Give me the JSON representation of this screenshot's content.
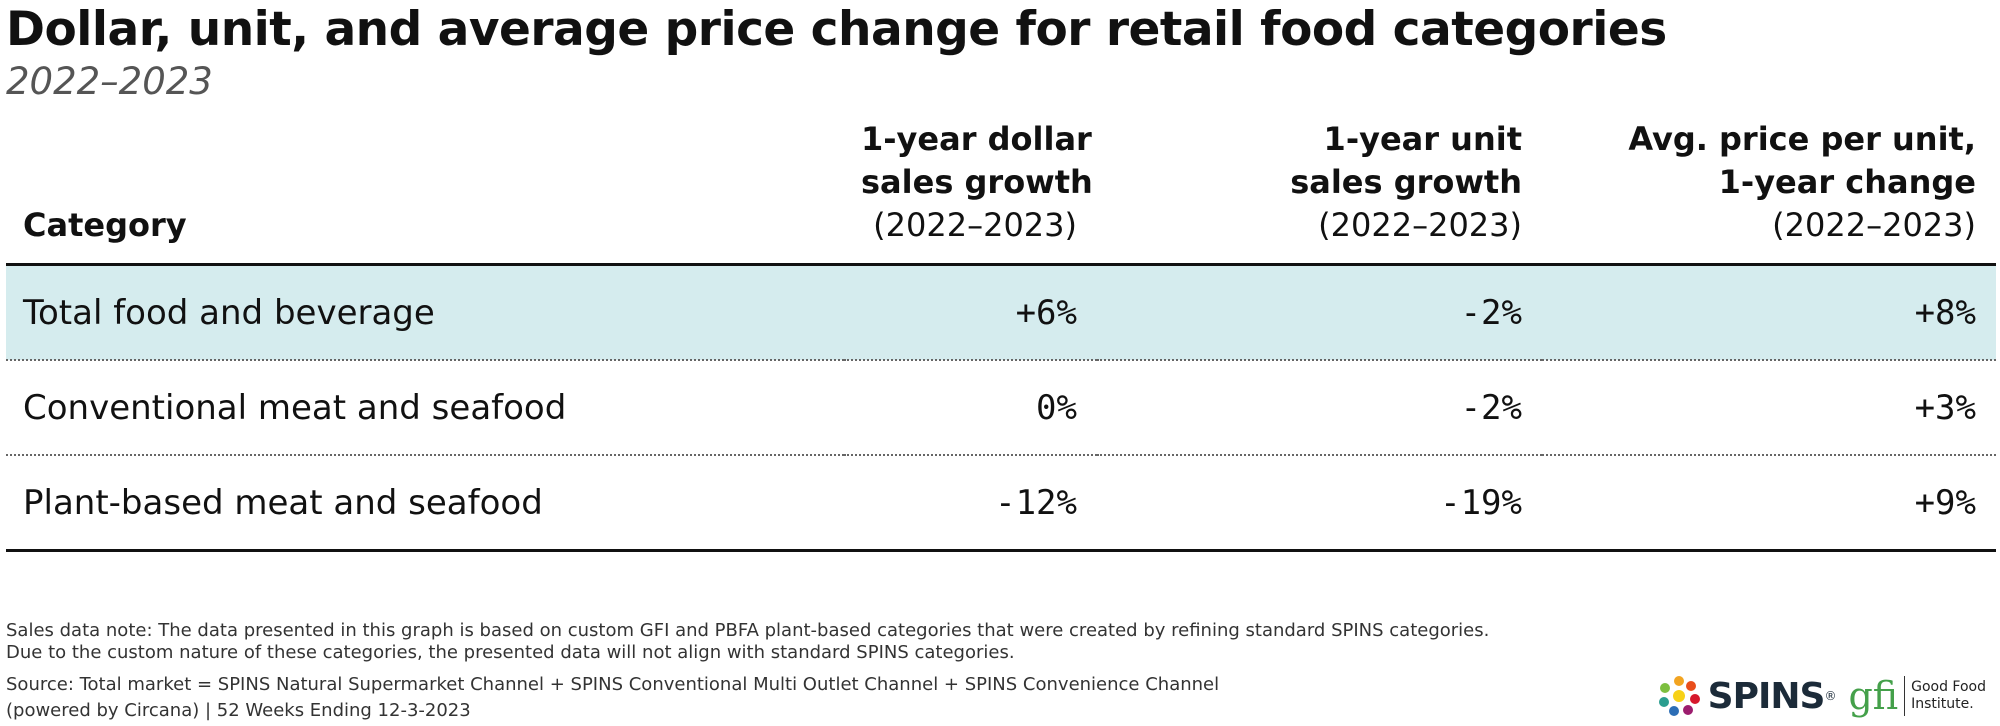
{
  "title": "Dollar, unit, and average price change for retail food categories",
  "subtitle": "2022–2023",
  "chart_data": {
    "type": "table",
    "title": "Dollar, unit, and average price change for retail food categories",
    "subtitle": "2022–2023",
    "columns": [
      {
        "lines": [
          "Category"
        ]
      },
      {
        "lines": [
          "1-year dollar",
          "sales growth"
        ],
        "note": "(2022–2023)"
      },
      {
        "lines": [
          "1-year unit",
          "sales growth"
        ],
        "note": "(2022–2023)"
      },
      {
        "lines": [
          "Avg. price per unit,",
          "1-year change"
        ],
        "note": "(2022–2023)"
      }
    ],
    "rows": [
      {
        "category": "Total food and beverage",
        "dollar_growth": "+6%",
        "unit_growth": "-2%",
        "price_change": "+8%",
        "highlighted": true
      },
      {
        "category": "Conventional meat and seafood",
        "dollar_growth": "0%",
        "unit_growth": "-2%",
        "price_change": "+3%",
        "highlighted": false
      },
      {
        "category": "Plant-based meat and seafood",
        "dollar_growth": "-12%",
        "unit_growth": "-19%",
        "price_change": "+9%",
        "highlighted": false
      }
    ]
  },
  "footer": {
    "note_line1": "Sales data note: The data presented in this graph is based on custom GFI and PBFA plant-based categories that were created by refining standard SPINS categories.",
    "note_line2": "Due to the custom nature of these categories, the presented data will not align with standard SPINS categories.",
    "source_line1": "Source: Total market = SPINS Natural Supermarket Channel + SPINS Conventional Multi Outlet Channel + SPINS Convenience Channel",
    "source_line2": "(powered by Circana) | 52 Weeks Ending 12-3-2023"
  },
  "logos": {
    "spins": "SPINS",
    "spins_mark": "®",
    "gfi": "gfi",
    "gfi_name_line1": "Good Food",
    "gfi_name_line2": "Institute."
  },
  "colors": {
    "highlight_row": "#d5ecee",
    "text": "#111111",
    "gfi_green": "#44a04a"
  }
}
